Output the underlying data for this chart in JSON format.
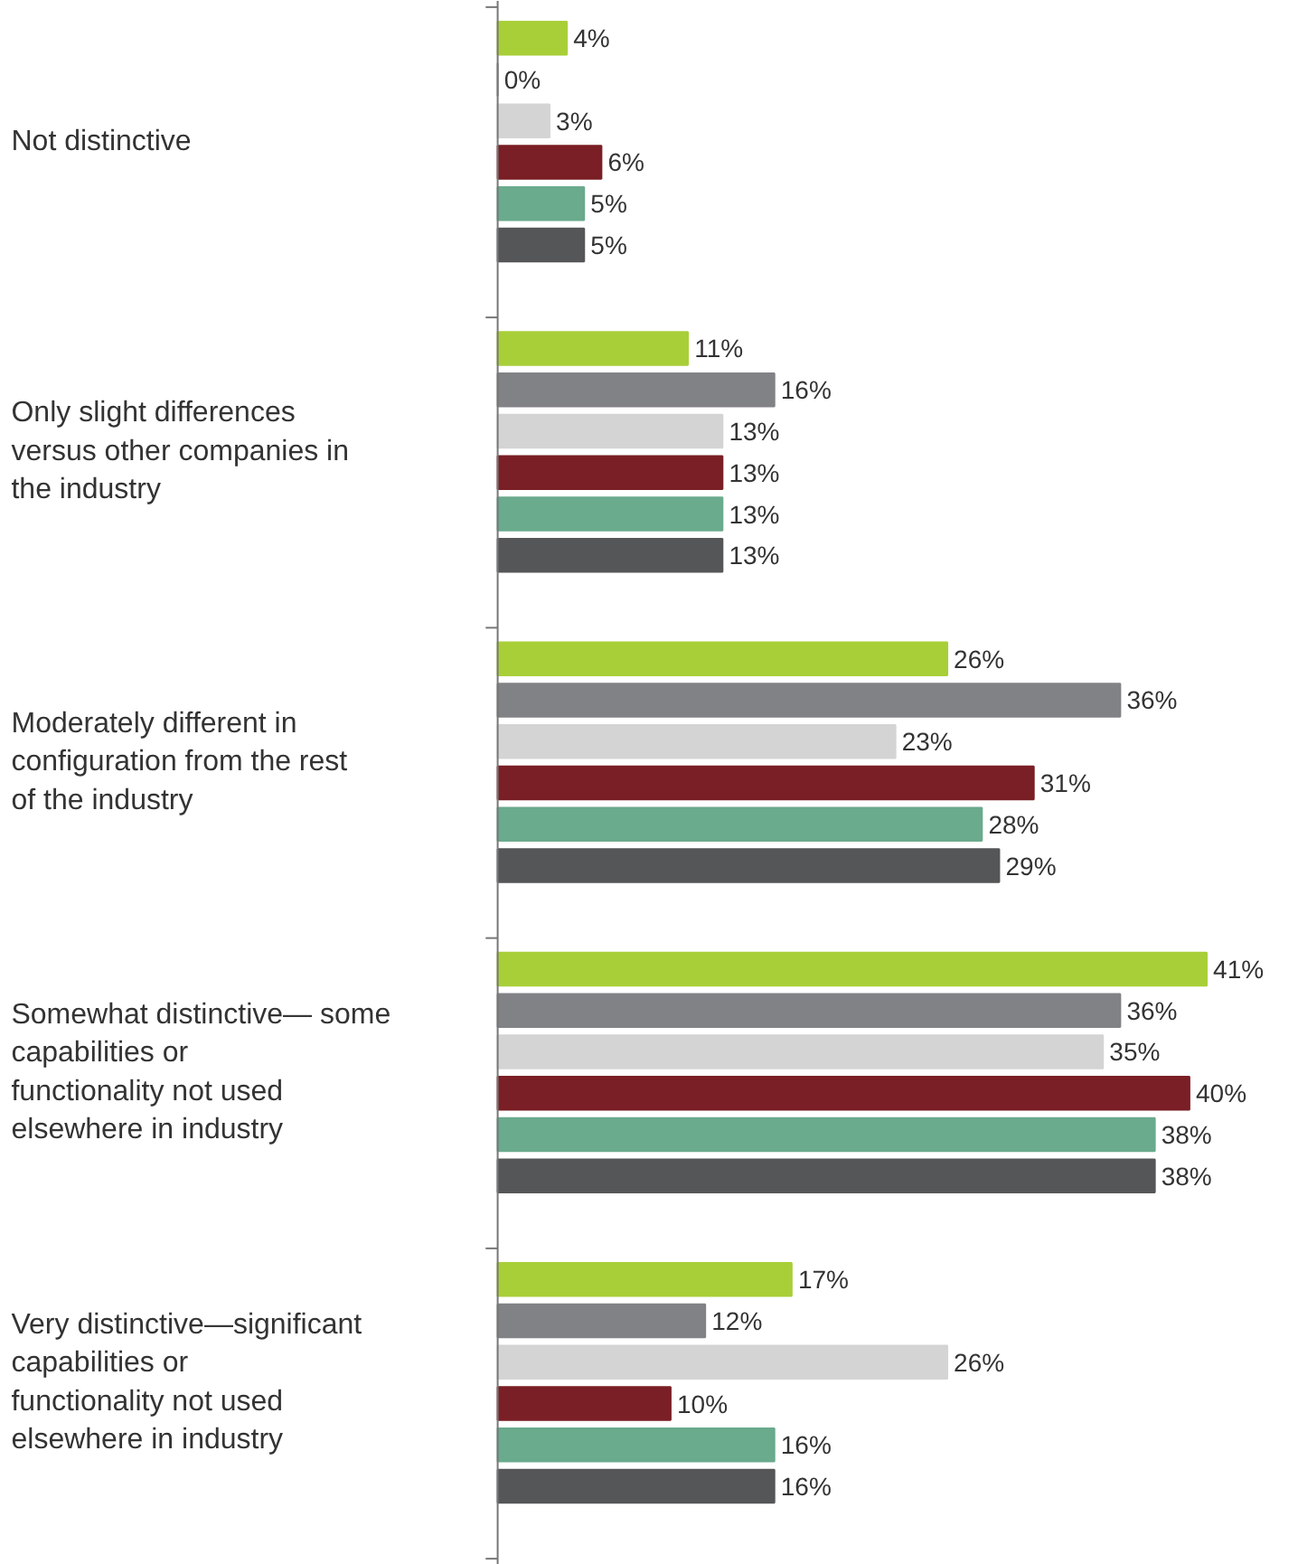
{
  "chart_data": {
    "type": "bar",
    "orientation": "horizontal",
    "grid": false,
    "categories": [
      "Not distinctive",
      "Only slight differences versus other companies in the industry",
      "Moderately different in configuration from the rest of the industry",
      "Somewhat distinctive— some capabilities or functionality not used elsewhere in industry",
      "Very distinctive—significant capabilities or functionality not used elsewhere in industry"
    ],
    "series": [
      {
        "color": "#a8cf38",
        "values": [
          4,
          11,
          26,
          41,
          17
        ],
        "value_labels": [
          "4%",
          "11%",
          "26%",
          "41%",
          "17%"
        ]
      },
      {
        "color": "#818286",
        "values": [
          0,
          16,
          36,
          36,
          12
        ],
        "value_labels": [
          "0%",
          "16%",
          "36%",
          "36%",
          "12%"
        ]
      },
      {
        "color": "#d4d4d5",
        "values": [
          3,
          13,
          23,
          35,
          26
        ],
        "value_labels": [
          "3%",
          "13%",
          "23%",
          "35%",
          "26%"
        ]
      },
      {
        "color": "#7a1f25",
        "values": [
          6,
          13,
          31,
          40,
          10
        ],
        "value_labels": [
          "6%",
          "13%",
          "31%",
          "40%",
          "10%"
        ]
      },
      {
        "color": "#6aaa8d",
        "values": [
          5,
          13,
          28,
          38,
          16
        ],
        "value_labels": [
          "5%",
          "13%",
          "28%",
          "38%",
          "16%"
        ]
      },
      {
        "color": "#555658",
        "values": [
          5,
          13,
          29,
          38,
          16
        ],
        "value_labels": [
          "5%",
          "13%",
          "29%",
          "38%",
          "16%"
        ]
      }
    ]
  }
}
